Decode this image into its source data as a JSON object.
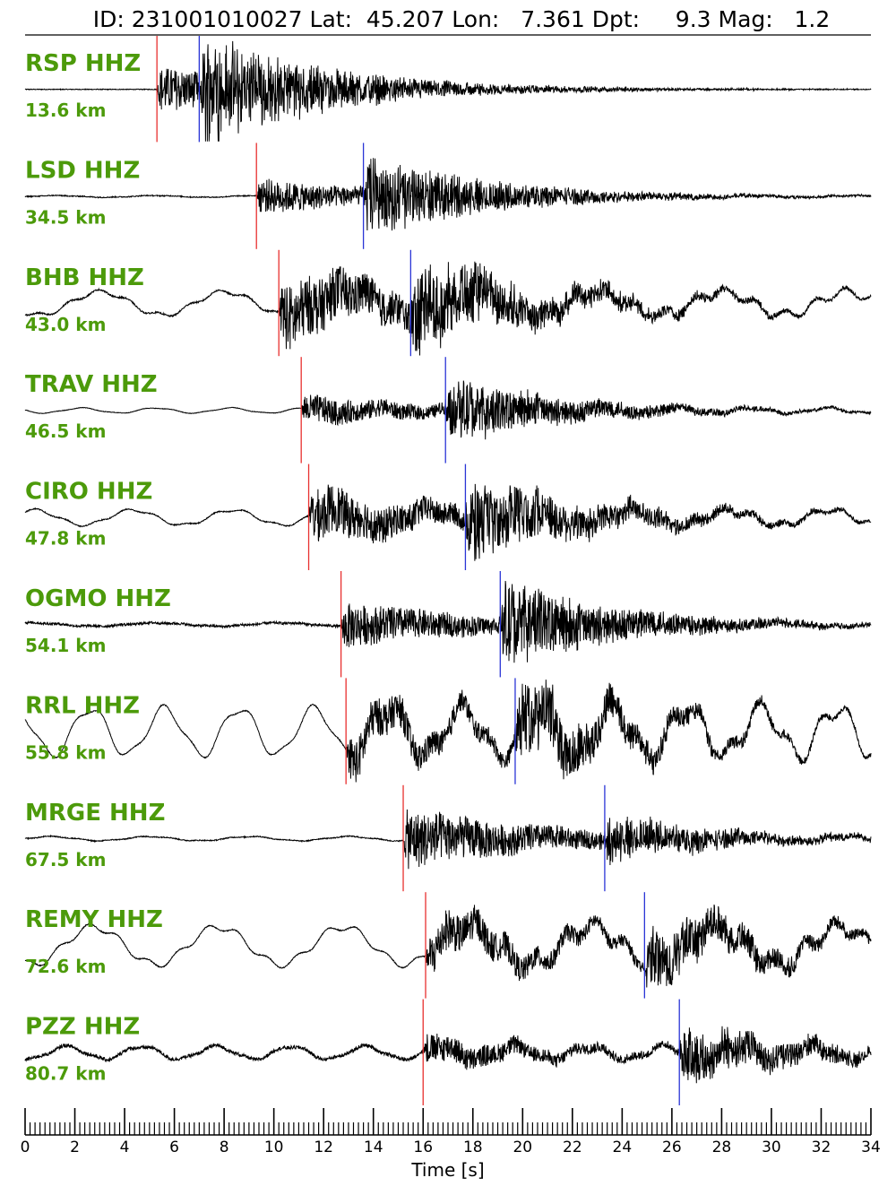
{
  "chart_data": {
    "type": "line",
    "title": "ID: 231001010027 Lat:  45.207 Lon:   7.361 Dpt:     9.3 Mag:   1.2",
    "event": {
      "id": "231001010027",
      "lat": 45.207,
      "lon": 7.361,
      "depth": 9.3,
      "mag": 1.2
    },
    "xlabel": "Time [s]",
    "xlim": [
      0,
      34
    ],
    "x_ticks": [
      0,
      2,
      4,
      6,
      8,
      10,
      12,
      14,
      16,
      18,
      20,
      22,
      24,
      26,
      28,
      30,
      32,
      34
    ],
    "x_tick_labels": [
      "0",
      "2",
      "4",
      "6",
      "8",
      "10",
      "12",
      "14",
      "16",
      "18",
      "20",
      "22",
      "24",
      "26",
      "28",
      "30",
      "32",
      "34"
    ],
    "minor_tick_step": 0.2,
    "grid": false,
    "series": [
      {
        "name": "RSP HHZ",
        "distance": "13.6 km",
        "p_pick": 5.3,
        "s_pick": 7.0,
        "noise": 0.015,
        "p_amp": 0.45,
        "s_amp": 0.95,
        "lowfreq_amp": 0.0
      },
      {
        "name": "LSD HHZ",
        "distance": "34.5 km",
        "p_pick": 9.3,
        "s_pick": 13.6,
        "noise": 0.02,
        "p_amp": 0.35,
        "s_amp": 0.75,
        "lowfreq_amp": 0.02
      },
      {
        "name": "BHB HHZ",
        "distance": "43.0 km",
        "p_pick": 10.2,
        "s_pick": 15.5,
        "noise": 0.03,
        "p_amp": 0.7,
        "s_amp": 0.8,
        "lowfreq_amp": 0.28
      },
      {
        "name": "TRAV HHZ",
        "distance": "46.5 km",
        "p_pick": 11.1,
        "s_pick": 16.9,
        "noise": 0.01,
        "p_amp": 0.3,
        "s_amp": 0.6,
        "lowfreq_amp": 0.06
      },
      {
        "name": "CIRO HHZ",
        "distance": "47.8 km",
        "p_pick": 11.4,
        "s_pick": 17.7,
        "noise": 0.02,
        "p_amp": 0.55,
        "s_amp": 0.75,
        "lowfreq_amp": 0.18
      },
      {
        "name": "OGMO HHZ",
        "distance": "54.1 km",
        "p_pick": 12.7,
        "s_pick": 19.1,
        "noise": 0.05,
        "p_amp": 0.45,
        "s_amp": 0.8,
        "lowfreq_amp": 0.04
      },
      {
        "name": "RRL HHZ",
        "distance": "55.8 km",
        "p_pick": 12.9,
        "s_pick": 19.7,
        "noise": 0.02,
        "p_amp": 0.45,
        "s_amp": 0.7,
        "lowfreq_amp": 0.55
      },
      {
        "name": "MRGE HHZ",
        "distance": "67.5 km",
        "p_pick": 15.2,
        "s_pick": 23.3,
        "noise": 0.02,
        "p_amp": 0.6,
        "s_amp": 0.4,
        "lowfreq_amp": 0.05
      },
      {
        "name": "REMY HHZ",
        "distance": "72.6 km",
        "p_pick": 16.1,
        "s_pick": 24.9,
        "noise": 0.02,
        "p_amp": 0.45,
        "s_amp": 0.6,
        "lowfreq_amp": 0.45
      },
      {
        "name": "PZZ HHZ",
        "distance": "80.7 km",
        "p_pick": 16.0,
        "s_pick": 26.3,
        "noise": 0.07,
        "p_amp": 0.3,
        "s_amp": 0.55,
        "lowfreq_amp": 0.15
      }
    ]
  },
  "colors": {
    "trace": "#000000",
    "p_pick": "#e8302f",
    "s_pick": "#2a35d6",
    "label": "#4c9a0a",
    "axis": "#000000"
  }
}
